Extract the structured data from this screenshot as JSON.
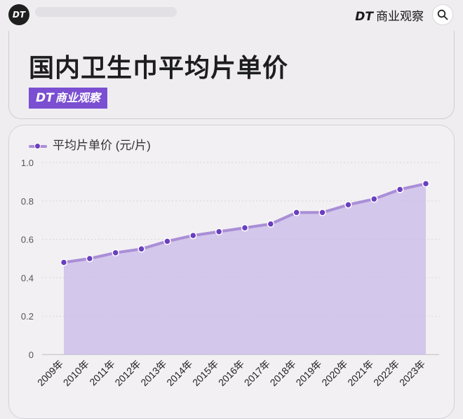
{
  "topbar": {
    "logo_text": "DT",
    "brand_mark": "DT",
    "brand_name": "商业观察"
  },
  "header": {
    "title": "国内卫生巾平均片单价",
    "tag_mark": "DT",
    "tag_text": "商业观察"
  },
  "colors": {
    "accent": "#7a4fd1",
    "line": "#a98ed6",
    "area": "#cbbde8",
    "point": "#6a3fbf"
  },
  "chart_data": {
    "type": "area",
    "title": "",
    "xlabel": "",
    "ylabel": "",
    "legend_position": "top-left",
    "grid": true,
    "ylim": [
      0,
      1.0
    ],
    "yticks": [
      "0",
      "0.2",
      "0.4",
      "0.6",
      "0.8",
      "1.0"
    ],
    "categories": [
      "2009年",
      "2010年",
      "2011年",
      "2012年",
      "2013年",
      "2014年",
      "2015年",
      "2016年",
      "2017年",
      "2018年",
      "2019年",
      "2020年",
      "2021年",
      "2022年",
      "2023年"
    ],
    "series": [
      {
        "name": "平均片单价 (元/片)",
        "values": [
          0.48,
          0.5,
          0.53,
          0.55,
          0.59,
          0.62,
          0.64,
          0.66,
          0.68,
          0.74,
          0.74,
          0.78,
          0.81,
          0.86,
          0.89
        ]
      }
    ]
  }
}
